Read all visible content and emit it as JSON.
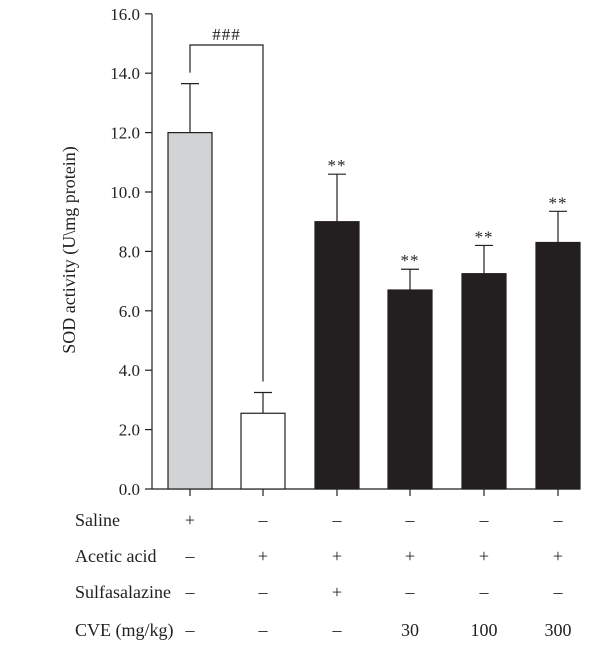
{
  "chart_data": {
    "type": "bar",
    "title": "",
    "ylabel": "SOD activity (U\\mg protein)",
    "ylim": [
      0,
      16
    ],
    "yticks": [
      "0.0",
      "2.0",
      "4.0",
      "6.0",
      "8.0",
      "10.0",
      "12.0",
      "14.0",
      "16.0"
    ],
    "grid": false,
    "legend": "none",
    "categories": [
      "Saline",
      "Acetic acid",
      "Acetic acid + Sulfasalazine",
      "CVE 30",
      "CVE 100",
      "CVE 300"
    ],
    "values": [
      12.0,
      2.55,
      9.0,
      6.7,
      7.25,
      8.3
    ],
    "errors": [
      1.65,
      0.7,
      1.6,
      0.7,
      0.95,
      1.05
    ],
    "bar_colors": [
      "#d1d3d4",
      "#ffffff",
      "#231f20",
      "#231f20",
      "#231f20",
      "#231f20"
    ],
    "annotations": [
      "",
      "",
      "**",
      "**",
      "**",
      "**"
    ],
    "bracket": {
      "from": 0,
      "to": 1,
      "label": "###"
    },
    "treatment_table": {
      "rows": [
        {
          "label": "Saline",
          "cells": [
            "+",
            "–",
            "–",
            "–",
            "–",
            "–"
          ]
        },
        {
          "label": "Acetic acid",
          "cells": [
            "–",
            "+",
            "+",
            "+",
            "+",
            "+"
          ]
        },
        {
          "label": "Sulfasalazine",
          "cells": [
            "–",
            "–",
            "+",
            "–",
            "–",
            "–"
          ]
        },
        {
          "label": "CVE (mg/kg)",
          "cells": [
            "–",
            "–",
            "–",
            "30",
            "100",
            "300"
          ]
        }
      ]
    }
  }
}
